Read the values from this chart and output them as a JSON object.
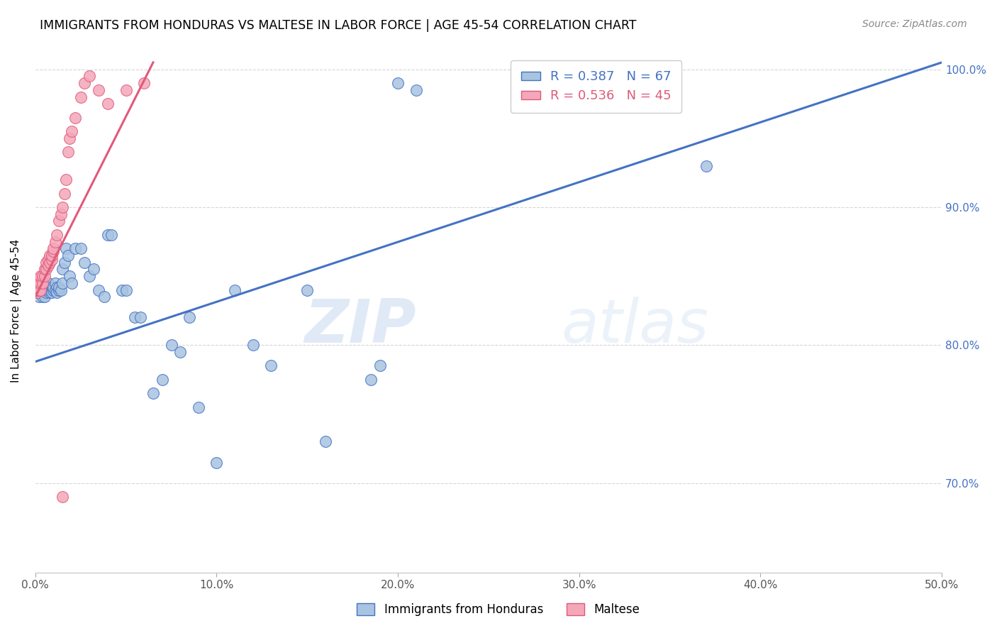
{
  "title": "IMMIGRANTS FROM HONDURAS VS MALTESE IN LABOR FORCE | AGE 45-54 CORRELATION CHART",
  "source": "Source: ZipAtlas.com",
  "ylabel": "In Labor Force | Age 45-54",
  "xlim": [
    0.0,
    0.5
  ],
  "ylim": [
    0.635,
    1.015
  ],
  "xticks": [
    0.0,
    0.1,
    0.2,
    0.3,
    0.4,
    0.5
  ],
  "yticks": [
    0.7,
    0.8,
    0.9,
    1.0
  ],
  "ytick_labels": [
    "70.0%",
    "80.0%",
    "90.0%",
    "100.0%"
  ],
  "xtick_labels": [
    "0.0%",
    "10.0%",
    "20.0%",
    "30.0%",
    "40.0%",
    "50.0%"
  ],
  "legend_r_honduras": "R = 0.387",
  "legend_n_honduras": "N = 67",
  "legend_r_maltese": "R = 0.536",
  "legend_n_maltese": "N = 45",
  "color_honduras": "#a8c4e0",
  "color_maltese": "#f4a7b9",
  "color_line_honduras": "#4472c4",
  "color_line_maltese": "#e05a7a",
  "color_axis_right": "#4472c4",
  "watermark_zip": "ZIP",
  "watermark_atlas": "atlas",
  "honduras_x": [
    0.001,
    0.001,
    0.002,
    0.002,
    0.003,
    0.003,
    0.004,
    0.004,
    0.005,
    0.005,
    0.005,
    0.006,
    0.006,
    0.006,
    0.007,
    0.007,
    0.008,
    0.008,
    0.008,
    0.009,
    0.009,
    0.01,
    0.01,
    0.011,
    0.011,
    0.012,
    0.012,
    0.013,
    0.013,
    0.014,
    0.015,
    0.015,
    0.016,
    0.017,
    0.018,
    0.019,
    0.02,
    0.022,
    0.025,
    0.027,
    0.03,
    0.032,
    0.035,
    0.038,
    0.04,
    0.042,
    0.048,
    0.05,
    0.055,
    0.058,
    0.065,
    0.07,
    0.075,
    0.08,
    0.085,
    0.09,
    0.1,
    0.11,
    0.12,
    0.13,
    0.15,
    0.16,
    0.2,
    0.21,
    0.37,
    0.19,
    0.185
  ],
  "honduras_y": [
    0.838,
    0.842,
    0.84,
    0.835,
    0.838,
    0.842,
    0.84,
    0.835,
    0.84,
    0.838,
    0.835,
    0.838,
    0.842,
    0.84,
    0.842,
    0.845,
    0.838,
    0.84,
    0.842,
    0.84,
    0.838,
    0.84,
    0.842,
    0.845,
    0.84,
    0.842,
    0.838,
    0.84,
    0.842,
    0.84,
    0.845,
    0.855,
    0.86,
    0.87,
    0.865,
    0.85,
    0.845,
    0.87,
    0.87,
    0.86,
    0.85,
    0.855,
    0.84,
    0.835,
    0.88,
    0.88,
    0.84,
    0.84,
    0.82,
    0.82,
    0.765,
    0.775,
    0.8,
    0.795,
    0.82,
    0.755,
    0.715,
    0.84,
    0.8,
    0.785,
    0.84,
    0.73,
    0.99,
    0.985,
    0.93,
    0.785,
    0.775
  ],
  "maltese_x": [
    0.0,
    0.0,
    0.0,
    0.001,
    0.001,
    0.001,
    0.002,
    0.002,
    0.002,
    0.003,
    0.003,
    0.003,
    0.004,
    0.004,
    0.005,
    0.005,
    0.006,
    0.006,
    0.007,
    0.007,
    0.008,
    0.008,
    0.009,
    0.009,
    0.01,
    0.01,
    0.011,
    0.012,
    0.013,
    0.014,
    0.015,
    0.016,
    0.017,
    0.018,
    0.019,
    0.02,
    0.022,
    0.025,
    0.027,
    0.03,
    0.035,
    0.04,
    0.05,
    0.06,
    0.015
  ],
  "maltese_y": [
    0.84,
    0.845,
    0.848,
    0.838,
    0.84,
    0.845,
    0.84,
    0.845,
    0.848,
    0.84,
    0.845,
    0.85,
    0.845,
    0.85,
    0.85,
    0.855,
    0.855,
    0.86,
    0.858,
    0.862,
    0.86,
    0.865,
    0.862,
    0.865,
    0.868,
    0.87,
    0.875,
    0.88,
    0.89,
    0.895,
    0.9,
    0.91,
    0.92,
    0.94,
    0.95,
    0.955,
    0.965,
    0.98,
    0.99,
    0.995,
    0.985,
    0.975,
    0.985,
    0.99,
    0.69
  ],
  "line_honduras_x0": 0.0,
  "line_honduras_x1": 0.5,
  "line_honduras_y0": 0.788,
  "line_honduras_y1": 1.005,
  "line_maltese_x0": 0.0,
  "line_maltese_x1": 0.065,
  "line_maltese_y0": 0.835,
  "line_maltese_y1": 1.005
}
